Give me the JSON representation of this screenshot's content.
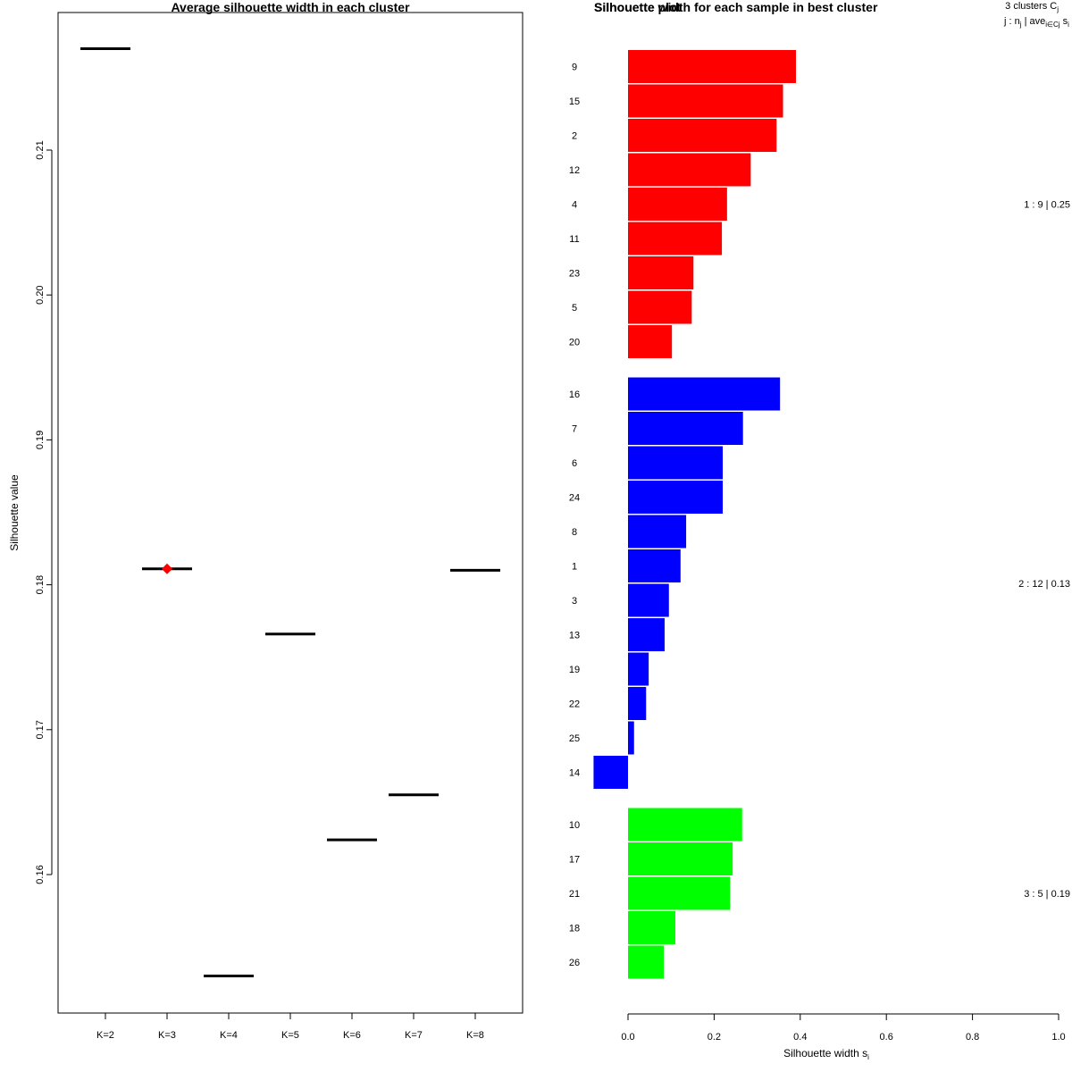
{
  "chart_data": [
    {
      "type": "segment",
      "title": "Average silhouette width in each cluster",
      "xlabel": "",
      "ylabel": "Silhouette value",
      "ylim": [
        0.15,
        0.22
      ],
      "yticks": [
        0.16,
        0.17,
        0.18,
        0.19,
        0.2,
        0.21
      ],
      "ytick_labels": [
        "0.16",
        "0.17",
        "0.18",
        "0.19",
        "0.20",
        "0.21"
      ],
      "categories": [
        "K=2",
        "K=3",
        "K=4",
        "K=5",
        "K=6",
        "K=7",
        "K=8"
      ],
      "values": [
        0.217,
        0.1811,
        0.153,
        0.1766,
        0.1624,
        0.1655,
        0.181
      ],
      "best": {
        "category": "K=3",
        "value": 0.1811,
        "color": "#ff0000"
      },
      "line_color": "#000000"
    },
    {
      "type": "bar",
      "orientation": "horizontal",
      "title": "Silhouette width for each sample in best cluster",
      "header_overlap_text": "Silhouette plot",
      "xlabel": "Silhouette width s",
      "xlabel_sub": "i",
      "xlim": [
        0,
        1
      ],
      "xticks": [
        0,
        0.2,
        0.4,
        0.6,
        0.8,
        1.0
      ],
      "xtick_labels": [
        "0.0",
        "0.2",
        "0.4",
        "0.6",
        "0.8",
        "1.0"
      ],
      "legend_header": {
        "line1": {
          "text": "3  clusters  C",
          "sub": "j"
        },
        "line2": {
          "t1": "j :  n",
          "s1": "j",
          "t2": " | ave",
          "s2": "i∈Cj",
          "t3": "  s",
          "s3": "i"
        }
      },
      "clusters": [
        {
          "id": 1,
          "n": 9,
          "ave": "0.25",
          "label": "1 :  9  |  0.25",
          "color": "#ff0000",
          "samples": [
            "9",
            "15",
            "2",
            "12",
            "4",
            "11",
            "23",
            "5",
            "20"
          ],
          "values": [
            0.39,
            0.36,
            0.345,
            0.285,
            0.23,
            0.218,
            0.152,
            0.148,
            0.102
          ]
        },
        {
          "id": 2,
          "n": 12,
          "ave": "0.13",
          "label": "2 :  12  |  0.13",
          "color": "#0000ff",
          "samples": [
            "16",
            "7",
            "6",
            "24",
            "8",
            "1",
            "3",
            "13",
            "19",
            "22",
            "25",
            "14"
          ],
          "values": [
            0.353,
            0.267,
            0.22,
            0.22,
            0.135,
            0.122,
            0.095,
            0.085,
            0.048,
            0.042,
            0.014,
            -0.08
          ]
        },
        {
          "id": 3,
          "n": 5,
          "ave": "0.19",
          "label": "3 :  5  |  0.19",
          "color": "#00ff00",
          "samples": [
            "10",
            "17",
            "21",
            "18",
            "26"
          ],
          "values": [
            0.265,
            0.243,
            0.237,
            0.11,
            0.083
          ]
        }
      ]
    }
  ]
}
